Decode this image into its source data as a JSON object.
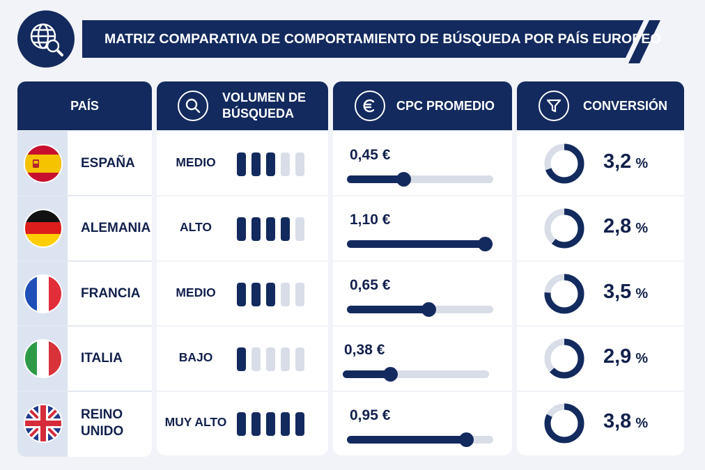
{
  "title": "MATRIZ COMPARATIVA DE COMPORTAMIENTO DE BÚSQUEDA POR PAÍS EUROPEO",
  "colors": {
    "navy": "#132a5e",
    "light": "#d8dde8",
    "accent_band": "#dce3f1"
  },
  "icons": {
    "title": "globe-search-icon",
    "volume": "search-icon",
    "cpc": "euro-icon",
    "conversion": "funnel-icon"
  },
  "headers": {
    "country": "PAÍS",
    "volume": "VOLUMEN DE BÚSQUEDA",
    "cpc": "CPC PROMEDIO",
    "conversion": "CONVERSIÓN"
  },
  "chart_data": {
    "type": "table",
    "volume_scale_max": 5,
    "cpc_scale_max": 1.1,
    "rows": [
      {
        "country": "ESPAÑA",
        "flag": "spain-flag-icon",
        "volume": "MEDIO",
        "volume_level": 3,
        "cpc": "0,45 €",
        "cpc_value": 0.45,
        "conversion": "3,2",
        "conversion_value": 3.2,
        "unit": "%"
      },
      {
        "country": "ALEMANIA",
        "flag": "germany-flag-icon",
        "volume": "ALTO",
        "volume_level": 4,
        "cpc": "1,10 €",
        "cpc_value": 1.1,
        "conversion": "2,8",
        "conversion_value": 2.8,
        "unit": "%"
      },
      {
        "country": "FRANCIA",
        "flag": "france-flag-icon",
        "volume": "MEDIO",
        "volume_level": 3,
        "cpc": "0,65 €",
        "cpc_value": 0.65,
        "conversion": "3,5",
        "conversion_value": 3.5,
        "unit": "%"
      },
      {
        "country": "ITALIA",
        "flag": "italy-flag-icon",
        "volume": "BAJO",
        "volume_level": 1,
        "cpc": "0,38 €",
        "cpc_value": 0.38,
        "conversion": "2,9",
        "conversion_value": 2.9,
        "unit": "%"
      },
      {
        "country": "REINO UNIDO",
        "flag": "uk-flag-icon",
        "volume": "MUY ALTO",
        "volume_level": 5,
        "cpc": "0,95 €",
        "cpc_value": 0.95,
        "conversion": "3,8",
        "conversion_value": 3.8,
        "unit": "%"
      }
    ]
  }
}
